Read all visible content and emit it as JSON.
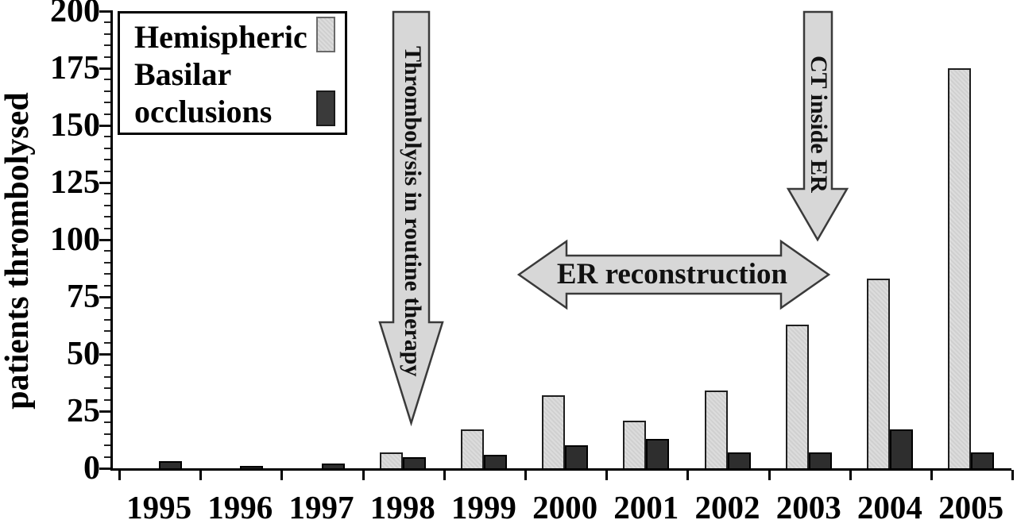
{
  "figure": {
    "y_axis_title": "patients thrombolysed",
    "legend": {
      "items": [
        {
          "label": "Hemispheric",
          "swatch": "light-gray-bar"
        },
        {
          "label": "Basilar occlusions",
          "swatch": "dark-gray-bar"
        }
      ]
    },
    "annotations": {
      "down_arrow_1998": "Thrombolysis in routine therapy",
      "double_arrow": "ER reconstruction",
      "down_arrow_2003": "CT inside ER"
    },
    "colors": {
      "hemispheric_fill": "#d6d6d6",
      "basilar_fill": "#2e2e2e",
      "arrow_fill": "#d7d7d7",
      "arrow_border": "#3a3a3a",
      "axis": "#000000",
      "background": "#ffffff"
    }
  },
  "chart_data": {
    "type": "bar",
    "title": "",
    "categories": [
      "1995",
      "1996",
      "1997",
      "1998",
      "1999",
      "2000",
      "2001",
      "2002",
      "2003",
      "2004",
      "2005"
    ],
    "series": [
      {
        "name": "Hemispheric",
        "values": [
          0,
          0,
          0,
          7,
          17,
          32,
          21,
          34,
          63,
          83,
          175
        ]
      },
      {
        "name": "Basilar occlusions",
        "values": [
          3,
          1,
          2,
          5,
          6,
          10,
          13,
          7,
          7,
          17,
          7
        ]
      }
    ],
    "xlabel": "",
    "ylabel": "patients thrombolysed",
    "ylim": [
      0,
      200
    ],
    "ytick_step": 25,
    "minor_tick_step": 5,
    "grid": false,
    "legend_position": "top-left",
    "annotations": [
      {
        "type": "down-arrow",
        "text": "Thrombolysis in routine therapy",
        "x": "1998"
      },
      {
        "type": "horizontal-double-arrow",
        "text": "ER reconstruction",
        "x_span": [
          "2000",
          "2003"
        ]
      },
      {
        "type": "down-arrow",
        "text": "CT inside ER",
        "x": "2003"
      }
    ]
  }
}
